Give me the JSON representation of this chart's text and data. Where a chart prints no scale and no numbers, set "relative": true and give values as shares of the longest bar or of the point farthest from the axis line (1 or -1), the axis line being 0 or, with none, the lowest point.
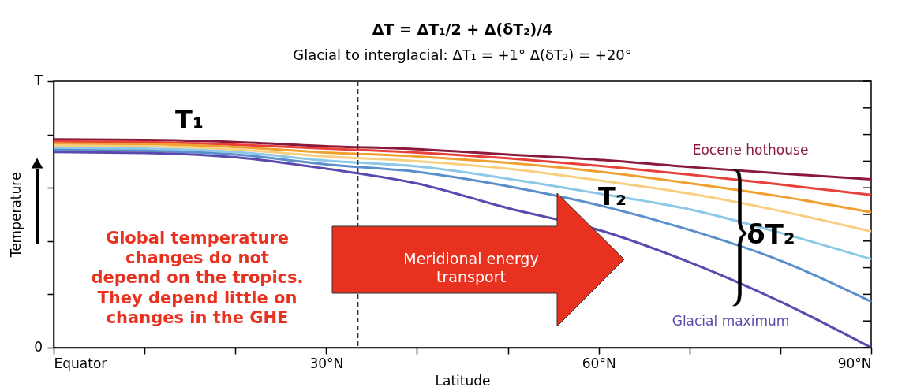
{
  "chart_data": {
    "type": "line",
    "title": "ΔT = ΔT₁/2 + Δ(δT₂)/4",
    "subtitle": "Glacial to interglacial: ΔT₁ = +1° Δ(δT₂) = +20°",
    "xlabel": "Latitude",
    "ylabel": "Temperature",
    "relative": true,
    "x": [
      0,
      10,
      20,
      30,
      40,
      50,
      60,
      70,
      80,
      90
    ],
    "series": [
      {
        "color": "#8b1a3a",
        "values": [
          1.0,
          0.997,
          0.987,
          0.967,
          0.953,
          0.927,
          0.902,
          0.867,
          0.836,
          0.808
        ]
      },
      {
        "color": "#e8403a",
        "values": [
          0.99,
          0.987,
          0.974,
          0.955,
          0.937,
          0.909,
          0.873,
          0.831,
          0.783,
          0.733
        ]
      },
      {
        "color": "#f0a030",
        "values": [
          0.98,
          0.977,
          0.963,
          0.937,
          0.918,
          0.887,
          0.845,
          0.789,
          0.726,
          0.65
        ]
      },
      {
        "color": "#f8cf80",
        "values": [
          0.969,
          0.967,
          0.951,
          0.918,
          0.895,
          0.859,
          0.803,
          0.74,
          0.656,
          0.558
        ]
      },
      {
        "color": "#8cc8e8",
        "values": [
          0.959,
          0.955,
          0.939,
          0.898,
          0.87,
          0.811,
          0.74,
          0.664,
          0.551,
          0.425
        ]
      },
      {
        "color": "#5b8fcc",
        "values": [
          0.949,
          0.945,
          0.927,
          0.88,
          0.844,
          0.775,
          0.684,
          0.565,
          0.418,
          0.221
        ]
      },
      {
        "color": "#5a4ab0",
        "values": [
          0.939,
          0.935,
          0.914,
          0.859,
          0.788,
          0.67,
          0.565,
          0.41,
          0.221,
          0.0
        ]
      }
    ],
    "xlim": [
      0,
      90
    ],
    "xticks": [
      {
        "value": 0,
        "label": "Equator"
      },
      {
        "value": 10,
        "label": null
      },
      {
        "value": 20,
        "label": null
      },
      {
        "value": 30,
        "label": "30°N"
      },
      {
        "value": 40,
        "label": null
      },
      {
        "value": 50,
        "label": null
      },
      {
        "value": 60,
        "label": "60°N"
      },
      {
        "value": 70,
        "label": null
      },
      {
        "value": 80,
        "label": null
      },
      {
        "value": 90,
        "label": "90°N"
      }
    ],
    "ref_lines": [
      {
        "axis": "x",
        "value": 33.5,
        "line_style": "dashed",
        "color": "#333333"
      }
    ],
    "annotations": [
      "T₁",
      "T₂",
      "δT₂",
      "Eocene hothouse",
      "Glacial maximum",
      "Global temperature\nchanges do not\ndepend on the tropics.\nThey depend little on\nchanges in the GHE",
      "Meridional energy\ntransport",
      "T",
      "0"
    ],
    "grid": false,
    "legend": false,
    "marker": "none",
    "line_style": "solid"
  }
}
